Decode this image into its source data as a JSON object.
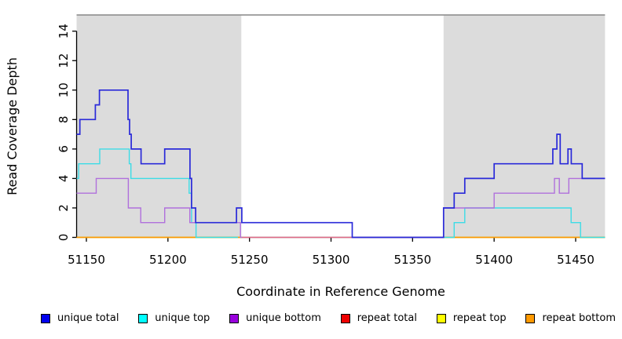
{
  "chart_data": {
    "type": "line",
    "step": true,
    "title": "",
    "xlabel": "Coordinate in Reference Genome",
    "ylabel": "Read Coverage Depth",
    "xlim": [
      51144,
      51468
    ],
    "ylim": [
      0,
      15.1
    ],
    "xticks": [
      51150,
      51200,
      51250,
      51300,
      51350,
      51400,
      51450
    ],
    "yticks": [
      0,
      2,
      4,
      6,
      8,
      10,
      12,
      14
    ],
    "grid": false,
    "top_rule": {
      "y": 15.1,
      "color": "#8f8f8f"
    },
    "shaded_regions": [
      {
        "x0": 51144,
        "x1": 51245,
        "color": "#dcdcdc"
      },
      {
        "x0": 51369,
        "x1": 51468,
        "color": "#dcdcdc"
      }
    ],
    "series": [
      {
        "id": "repeat-top",
        "name": "repeat top",
        "line_color": "#ffff00",
        "width": 1.4,
        "segments": [
          [
            [
              51144,
              0
            ],
            [
              51245.5,
              0
            ]
          ],
          [
            [
              51369,
              0
            ],
            [
              51468,
              0
            ]
          ]
        ]
      },
      {
        "id": "repeat-bottom",
        "name": "repeat bottom",
        "line_color": "#ff9505",
        "width": 1.5,
        "segments": [
          [
            [
              51144,
              0
            ],
            [
              51245.5,
              0
            ]
          ],
          [
            [
              51369,
              0
            ],
            [
              51468,
              0
            ]
          ]
        ]
      },
      {
        "id": "repeat-total",
        "name": "repeat total",
        "line_color": "#e06a87",
        "width": 1.4,
        "segments": [
          [
            [
              51245.5,
              0
            ],
            [
              51369,
              0
            ]
          ]
        ]
      },
      {
        "id": "unique-top",
        "name": "unique top",
        "line_color": "#3cdce6",
        "width": 1.4,
        "segments": [
          [
            [
              51144,
              4
            ],
            [
              51145.3,
              5
            ],
            [
              51158.2,
              6
            ],
            [
              51176.3,
              5
            ],
            [
              51177.3,
              4
            ],
            [
              51213,
              3
            ],
            [
              51214.5,
              1
            ],
            [
              51217.2,
              0
            ],
            [
              51243,
              0
            ]
          ],
          [
            [
              51369,
              0
            ],
            [
              51375.5,
              1
            ],
            [
              51382,
              2
            ],
            [
              51447.2,
              1
            ],
            [
              51453,
              0
            ],
            [
              51468,
              0
            ]
          ]
        ]
      },
      {
        "id": "unique-bottom",
        "name": "unique bottom",
        "line_color": "#b070dc",
        "width": 1.4,
        "segments": [
          [
            [
              51144,
              3
            ],
            [
              51156,
              4
            ],
            [
              51175.7,
              2
            ],
            [
              51183.3,
              1
            ],
            [
              51198,
              2
            ],
            [
              51213.4,
              1
            ],
            [
              51244.5,
              0
            ],
            [
              51245.5,
              0
            ]
          ],
          [
            [
              51369,
              0
            ],
            [
              51369,
              2
            ],
            [
              51400,
              3
            ],
            [
              51437,
              4
            ],
            [
              51440,
              3
            ],
            [
              51445.8,
              4
            ],
            [
              51468,
              4
            ]
          ]
        ]
      },
      {
        "id": "unique-total",
        "name": "unique total",
        "line_color": "#2a2ad9",
        "width": 1.7,
        "segments": [
          [
            [
              51144,
              7
            ],
            [
              51146,
              8
            ],
            [
              51155.5,
              9
            ],
            [
              51158,
              10
            ],
            [
              51175.5,
              8
            ],
            [
              51176.5,
              7
            ],
            [
              51177.5,
              6
            ],
            [
              51183.5,
              5
            ],
            [
              51198,
              6
            ],
            [
              51213.5,
              4
            ],
            [
              51214.5,
              2
            ],
            [
              51217,
              1
            ],
            [
              51242,
              2
            ],
            [
              51245.3,
              1
            ],
            [
              51313,
              0
            ],
            [
              51369,
              2
            ],
            [
              51375.5,
              3
            ],
            [
              51382,
              4
            ],
            [
              51400,
              5
            ],
            [
              51436,
              6
            ],
            [
              51438.5,
              7
            ],
            [
              51440.5,
              5
            ],
            [
              51445.3,
              6
            ],
            [
              51447.3,
              5
            ],
            [
              51454,
              4
            ],
            [
              51468,
              4
            ]
          ]
        ]
      }
    ]
  },
  "legend": {
    "items": [
      {
        "label": "unique total",
        "color": "#0000ee"
      },
      {
        "label": "unique top",
        "color": "#00ffff"
      },
      {
        "label": "unique bottom",
        "color": "#9900dd"
      },
      {
        "label": "repeat total",
        "color": "#ee0000"
      },
      {
        "label": "repeat top",
        "color": "#ffff00"
      },
      {
        "label": "repeat bottom",
        "color": "#ff9900"
      }
    ]
  }
}
